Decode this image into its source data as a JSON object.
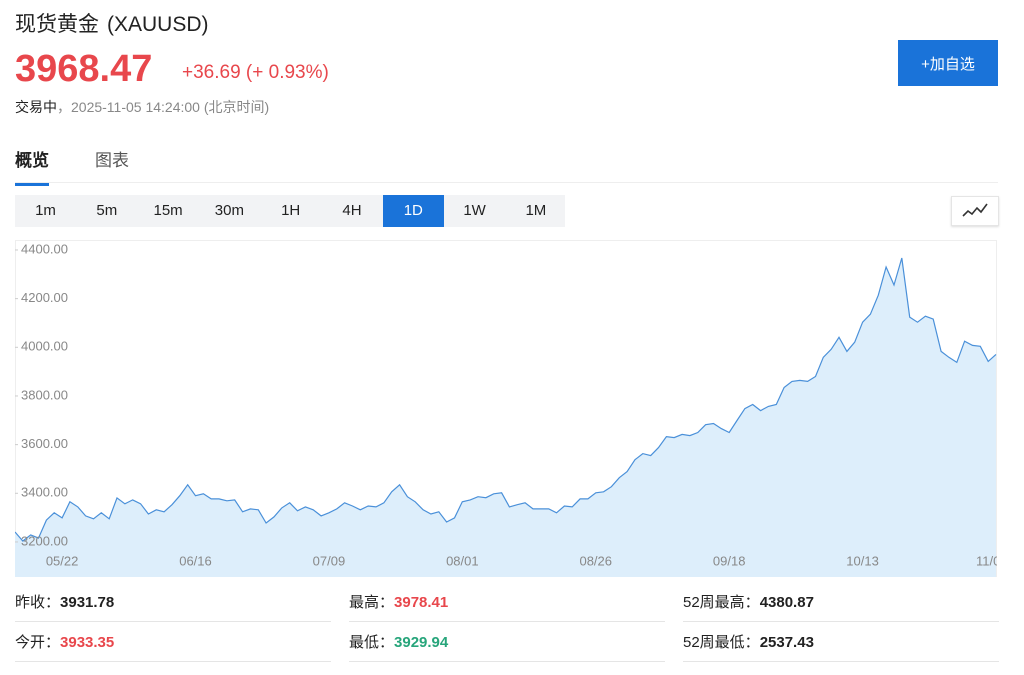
{
  "header": {
    "title": "现货黄金",
    "symbol": "(XAUUSD)",
    "price": "3968.47",
    "change": "+36.69 (+ 0.93%)",
    "status": "交易中",
    "separator": "，",
    "time": "2025-11-05 14:24:00",
    "timezone": "(北京时间)",
    "button": "+加自选"
  },
  "tabs": [
    {
      "label": "概览",
      "active": true
    },
    {
      "label": "图表",
      "active": false
    }
  ],
  "timeframes": [
    {
      "label": "1m",
      "active": false
    },
    {
      "label": "5m",
      "active": false
    },
    {
      "label": "15m",
      "active": false
    },
    {
      "label": "30m",
      "active": false
    },
    {
      "label": "1H",
      "active": false
    },
    {
      "label": "4H",
      "active": false
    },
    {
      "label": "1D",
      "active": true
    },
    {
      "label": "1W",
      "active": false
    },
    {
      "label": "1M",
      "active": false
    }
  ],
  "chart_data": {
    "type": "area",
    "color": "#4a90d9",
    "fill": "#ddeefb",
    "grid": false,
    "ylim": [
      3056,
      4441
    ],
    "yticks": [
      {
        "value": 3200,
        "label": "3200.00"
      },
      {
        "value": 3400,
        "label": "3400.00"
      },
      {
        "value": 3600,
        "label": "3600.00"
      },
      {
        "value": 3800,
        "label": "3800.00"
      },
      {
        "value": 4000,
        "label": "4000.00"
      },
      {
        "value": 4200,
        "label": "4200.00"
      },
      {
        "value": 4400,
        "label": "4400.00"
      }
    ],
    "categories": [
      null,
      null,
      null,
      null,
      null,
      null,
      "05/22",
      null,
      null,
      null,
      null,
      null,
      null,
      null,
      null,
      null,
      null,
      null,
      null,
      null,
      null,
      null,
      null,
      "06/16",
      null,
      null,
      null,
      null,
      null,
      null,
      null,
      null,
      null,
      null,
      null,
      null,
      null,
      null,
      null,
      null,
      "07/09",
      null,
      null,
      null,
      null,
      null,
      null,
      null,
      null,
      null,
      null,
      null,
      null,
      null,
      null,
      null,
      null,
      "08/01",
      null,
      null,
      null,
      null,
      null,
      null,
      null,
      null,
      null,
      null,
      null,
      null,
      null,
      null,
      null,
      null,
      "08/26",
      null,
      null,
      null,
      null,
      null,
      null,
      null,
      null,
      null,
      null,
      null,
      null,
      null,
      null,
      null,
      null,
      "09/18",
      null,
      null,
      null,
      null,
      null,
      null,
      null,
      null,
      null,
      null,
      null,
      null,
      null,
      null,
      null,
      null,
      "10/13",
      null,
      null,
      null,
      null,
      null,
      null,
      null,
      null,
      null,
      null,
      null,
      null,
      null,
      null,
      null,
      "11/0",
      null
    ],
    "values": [
      3241,
      3204,
      3229,
      3216,
      3290,
      3320,
      3299,
      3365,
      3344,
      3307,
      3295,
      3320,
      3295,
      3381,
      3357,
      3373,
      3357,
      3315,
      3332,
      3324,
      3353,
      3390,
      3435,
      3390,
      3398,
      3377,
      3377,
      3369,
      3373,
      3324,
      3336,
      3332,
      3278,
      3303,
      3340,
      3361,
      3328,
      3344,
      3332,
      3307,
      3320,
      3336,
      3361,
      3348,
      3332,
      3348,
      3344,
      3361,
      3406,
      3435,
      3386,
      3365,
      3332,
      3315,
      3324,
      3282,
      3299,
      3365,
      3373,
      3386,
      3382,
      3398,
      3402,
      3344,
      3353,
      3361,
      3336,
      3336,
      3336,
      3320,
      3348,
      3344,
      3377,
      3377,
      3402,
      3406,
      3427,
      3464,
      3489,
      3538,
      3563,
      3555,
      3588,
      3633,
      3629,
      3642,
      3637,
      3650,
      3682,
      3687,
      3666,
      3650,
      3699,
      3748,
      3765,
      3740,
      3757,
      3765,
      3835,
      3860,
      3864,
      3860,
      3880,
      3959,
      3992,
      4041,
      3983,
      4021,
      4103,
      4136,
      4214,
      4330,
      4256,
      4367,
      4124,
      4103,
      4128,
      4116,
      3983,
      3959,
      3938,
      4025,
      4008,
      4004,
      3942,
      3971
    ]
  },
  "stats": [
    [
      {
        "label": "昨收：",
        "value": "3931.78",
        "color": "#222222"
      },
      {
        "label": "最高：",
        "value": "3978.41",
        "color": "#e8474c"
      },
      {
        "label": "52周最高：",
        "value": "4380.87",
        "color": "#222222"
      }
    ],
    [
      {
        "label": "今开：",
        "value": "3933.35",
        "color": "#e8474c"
      },
      {
        "label": "最低：",
        "value": "3929.94",
        "color": "#27a57b"
      },
      {
        "label": "52周最低：",
        "value": "2537.43",
        "color": "#222222"
      }
    ]
  ]
}
